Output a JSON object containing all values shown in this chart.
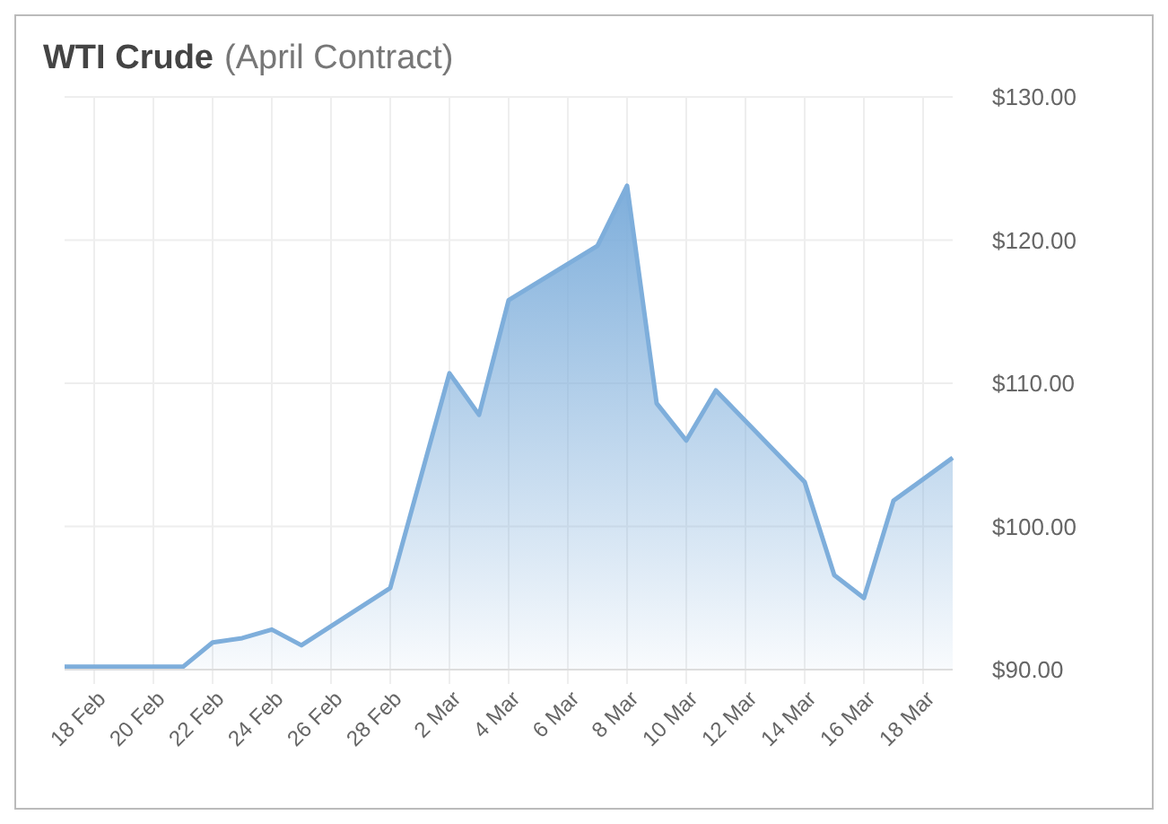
{
  "chart_data": {
    "type": "area",
    "title": "WTI Crude",
    "subtitle": "(April Contract)",
    "x": [
      "--02-17",
      "--02-21",
      "--02-22",
      "--02-23",
      "--02-24",
      "--02-25",
      "--02-28",
      "--03-02",
      "--03-03",
      "--03-04",
      "--03-07",
      "--03-08",
      "--03-09",
      "--03-10",
      "--03-11",
      "--03-14",
      "--03-15",
      "--03-16",
      "--03-17",
      "--03-19"
    ],
    "series": [
      {
        "color": "#7eaedb",
        "values": [
          90.2,
          90.2,
          91.9,
          92.2,
          92.8,
          91.7,
          95.7,
          110.7,
          107.8,
          115.8,
          119.6,
          123.8,
          108.6,
          106.0,
          109.5,
          103.1,
          96.6,
          95.0,
          101.8,
          104.8
        ]
      }
    ],
    "xlim": [
      "--02-17",
      "--03-19"
    ],
    "xticks": [
      {
        "value": "--02-18",
        "label": "18 Feb"
      },
      {
        "value": "--02-20",
        "label": "20 Feb"
      },
      {
        "value": "--02-22",
        "label": "22 Feb"
      },
      {
        "value": "--02-24",
        "label": "24 Feb"
      },
      {
        "value": "--02-26",
        "label": "26 Feb"
      },
      {
        "value": "--02-28",
        "label": "28 Feb"
      },
      {
        "value": "--03-02",
        "label": "2 Mar"
      },
      {
        "value": "--03-04",
        "label": "4 Mar"
      },
      {
        "value": "--03-06",
        "label": "6 Mar"
      },
      {
        "value": "--03-08",
        "label": "8 Mar"
      },
      {
        "value": "--03-10",
        "label": "10 Mar"
      },
      {
        "value": "--03-12",
        "label": "12 Mar"
      },
      {
        "value": "--03-14",
        "label": "14 Mar"
      },
      {
        "value": "--03-16",
        "label": "16 Mar"
      },
      {
        "value": "--03-18",
        "label": "18 Mar"
      }
    ],
    "ylim": [
      90,
      130
    ],
    "yticks": [
      {
        "value": 90,
        "label": "$90.00"
      },
      {
        "value": 100,
        "label": "$100.00"
      },
      {
        "value": 110,
        "label": "$110.00"
      },
      {
        "value": 120,
        "label": "$120.00"
      },
      {
        "value": 130,
        "label": "$130.00"
      }
    ],
    "grid": true
  }
}
